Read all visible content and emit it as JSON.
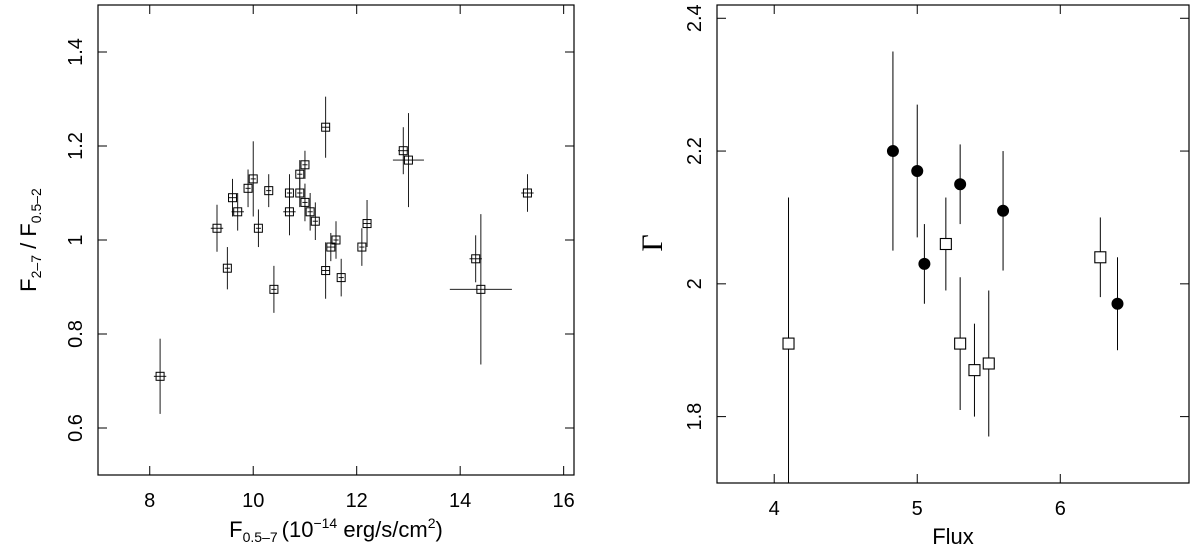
{
  "chart_data": [
    {
      "type": "scatter",
      "xlabel_main": "F",
      "xlabel_sub": "0.5–7",
      "xlabel_unit_pre": "(10",
      "xlabel_unit_sup": "−14",
      "xlabel_unit_mid": " erg/s/cm",
      "xlabel_unit_sup2": "2",
      "xlabel_unit_post": ")",
      "ylabel_a": "F",
      "ylabel_a_sub": "2–7",
      "ylabel_sep": " / F",
      "ylabel_b_sub": "0.5–2",
      "xlim": [
        7,
        16.2
      ],
      "ylim": [
        0.5,
        1.5
      ],
      "xticks": [
        8,
        10,
        12,
        14,
        16
      ],
      "xtick_labels": [
        "8",
        "10",
        "12",
        "14",
        "16"
      ],
      "yticks": [
        0.6,
        0.8,
        1.0,
        1.2,
        1.4
      ],
      "ytick_labels": [
        "0.6",
        "0.8",
        "1",
        "1.2",
        "1.4"
      ],
      "grid": false,
      "marker": "open-square",
      "points": [
        {
          "x": 8.2,
          "y": 0.71,
          "xerr": 0.12,
          "yerr": 0.08
        },
        {
          "x": 9.3,
          "y": 1.025,
          "xerr": 0.12,
          "yerr": 0.05
        },
        {
          "x": 9.5,
          "y": 0.94,
          "xerr": 0.05,
          "yerr": 0.045
        },
        {
          "x": 9.6,
          "y": 1.09,
          "xerr": 0.08,
          "yerr": 0.04
        },
        {
          "x": 9.7,
          "y": 1.06,
          "xerr": 0.12,
          "yerr": 0.04
        },
        {
          "x": 9.9,
          "y": 1.11,
          "xerr": 0.05,
          "yerr": 0.04
        },
        {
          "x": 10.0,
          "y": 1.13,
          "xerr": 0.05,
          "yerr": 0.08
        },
        {
          "x": 10.1,
          "y": 1.025,
          "xerr": 0.05,
          "yerr": 0.04
        },
        {
          "x": 10.3,
          "y": 1.105,
          "xerr": 0.05,
          "yerr": 0.035
        },
        {
          "x": 10.4,
          "y": 0.895,
          "xerr": 0.05,
          "yerr": 0.05
        },
        {
          "x": 10.7,
          "y": 1.1,
          "xerr": 0.05,
          "yerr": 0.04
        },
        {
          "x": 10.7,
          "y": 1.06,
          "xerr": 0.12,
          "yerr": 0.05
        },
        {
          "x": 10.9,
          "y": 1.1,
          "xerr": 0.05,
          "yerr": 0.03
        },
        {
          "x": 10.9,
          "y": 1.14,
          "xerr": 0.05,
          "yerr": 0.03
        },
        {
          "x": 11.0,
          "y": 1.16,
          "xerr": 0.05,
          "yerr": 0.03
        },
        {
          "x": 11.0,
          "y": 1.08,
          "xerr": 0.05,
          "yerr": 0.04
        },
        {
          "x": 11.1,
          "y": 1.06,
          "xerr": 0.05,
          "yerr": 0.04
        },
        {
          "x": 11.2,
          "y": 1.04,
          "xerr": 0.05,
          "yerr": 0.04
        },
        {
          "x": 11.4,
          "y": 1.24,
          "xerr": 0.08,
          "yerr": 0.065
        },
        {
          "x": 11.4,
          "y": 0.935,
          "xerr": 0.08,
          "yerr": 0.06
        },
        {
          "x": 11.5,
          "y": 0.985,
          "xerr": 0.08,
          "yerr": 0.03
        },
        {
          "x": 11.6,
          "y": 1.0,
          "xerr": 0.05,
          "yerr": 0.04
        },
        {
          "x": 11.7,
          "y": 0.92,
          "xerr": 0.05,
          "yerr": 0.04
        },
        {
          "x": 12.1,
          "y": 0.985,
          "xerr": 0.05,
          "yerr": 0.04
        },
        {
          "x": 12.2,
          "y": 1.035,
          "xerr": 0.08,
          "yerr": 0.05
        },
        {
          "x": 12.9,
          "y": 1.19,
          "xerr": 0.1,
          "yerr": 0.05
        },
        {
          "x": 13.0,
          "y": 1.17,
          "xerr": 0.3,
          "yerr": 0.1
        },
        {
          "x": 14.3,
          "y": 0.96,
          "xerr": 0.12,
          "yerr": 0.05
        },
        {
          "x": 14.4,
          "y": 0.895,
          "xerr": 0.6,
          "yerr": 0.16
        },
        {
          "x": 15.3,
          "y": 1.1,
          "xerr": 0.12,
          "yerr": 0.04
        }
      ]
    },
    {
      "type": "scatter",
      "xlabel": "Flux",
      "ylabel": "Γ",
      "xlim": [
        3.6,
        6.9
      ],
      "ylim": [
        1.7,
        2.42
      ],
      "xticks": [
        4,
        5,
        6
      ],
      "xtick_labels": [
        "4",
        "5",
        "6"
      ],
      "yticks": [
        1.8,
        2.0,
        2.2,
        2.4
      ],
      "ytick_labels": [
        "1.8",
        "2",
        "2.2",
        "2.4"
      ],
      "grid": false,
      "series": [
        {
          "marker": "filled-circle",
          "points": [
            {
              "x": 4.83,
              "y": 2.2,
              "ylo": 2.05,
              "yhi": 2.35
            },
            {
              "x": 5.0,
              "y": 2.17,
              "ylo": 2.07,
              "yhi": 2.27
            },
            {
              "x": 5.05,
              "y": 2.03,
              "ylo": 1.97,
              "yhi": 2.09
            },
            {
              "x": 5.3,
              "y": 2.15,
              "ylo": 2.09,
              "yhi": 2.21
            },
            {
              "x": 5.6,
              "y": 2.11,
              "ylo": 2.02,
              "yhi": 2.2
            },
            {
              "x": 6.4,
              "y": 1.97,
              "ylo": 1.9,
              "yhi": 2.04
            }
          ]
        },
        {
          "marker": "open-square",
          "points": [
            {
              "x": 4.1,
              "y": 1.91,
              "ylo": 1.7,
              "yhi": 2.13
            },
            {
              "x": 5.2,
              "y": 2.06,
              "ylo": 1.99,
              "yhi": 2.13
            },
            {
              "x": 5.3,
              "y": 1.91,
              "ylo": 1.81,
              "yhi": 2.01
            },
            {
              "x": 5.4,
              "y": 1.87,
              "ylo": 1.8,
              "yhi": 1.94
            },
            {
              "x": 5.5,
              "y": 1.88,
              "ylo": 1.77,
              "yhi": 1.99
            },
            {
              "x": 6.28,
              "y": 2.04,
              "ylo": 1.98,
              "yhi": 2.1
            }
          ]
        }
      ]
    }
  ]
}
